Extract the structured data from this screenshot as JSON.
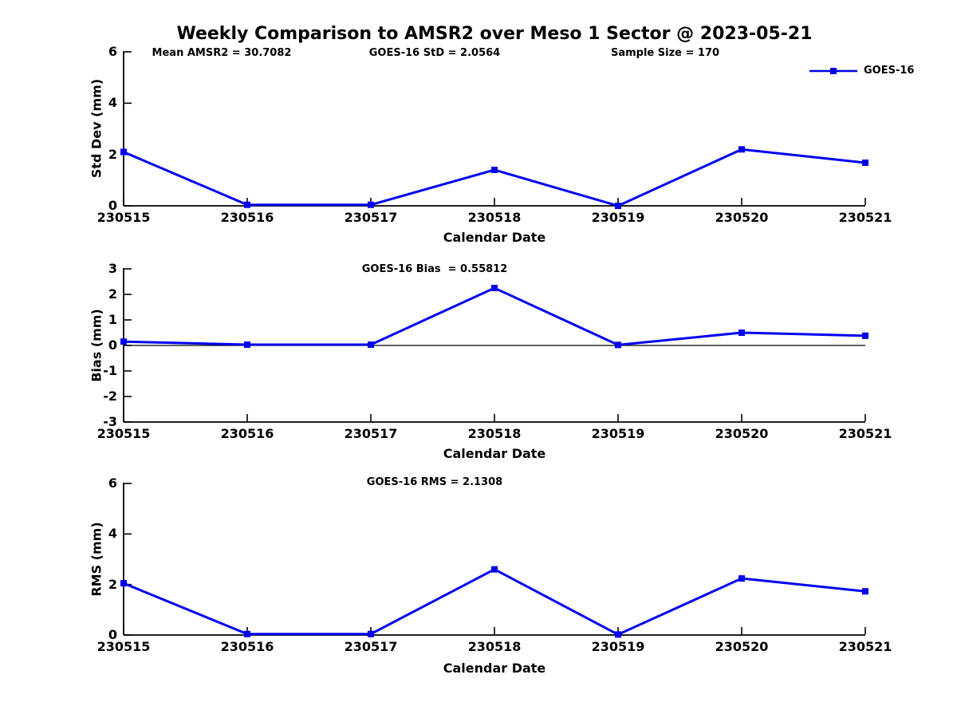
{
  "title": "Weekly Comparison to AMSR2 over Meso 1 Sector @ 2023-05-21",
  "colors": {
    "line": "#0000EE",
    "axis": "#000000",
    "background": "#FFFFFF",
    "text": "#000000"
  },
  "chart_data": [
    {
      "type": "line",
      "name": "std-dev",
      "annotations": [
        "Mean AMSR2 = 30.7082",
        "GOES-16 StD = 2.0564",
        "Sample Size = 170"
      ],
      "categories": [
        "230515",
        "230516",
        "230517",
        "230518",
        "230519",
        "230520",
        "230521"
      ],
      "series": [
        {
          "name": "GOES-16",
          "values": [
            2.1,
            0.04,
            0.04,
            1.4,
            0.0,
            2.2,
            1.68
          ]
        }
      ],
      "xlabel": "Calendar Date",
      "ylabel": "Std Dev (mm)",
      "ylim": [
        0,
        6
      ],
      "yticks": [
        0,
        2,
        4,
        6
      ],
      "grid": false,
      "marker": "square",
      "legend": {
        "label": "GOES-16",
        "position": "top-right"
      }
    },
    {
      "type": "line",
      "name": "bias",
      "annotations": [
        "GOES-16 Bias  = 0.55812"
      ],
      "categories": [
        "230515",
        "230516",
        "230517",
        "230518",
        "230519",
        "230520",
        "230521"
      ],
      "series": [
        {
          "name": "GOES-16",
          "values": [
            0.15,
            0.03,
            0.03,
            2.25,
            0.02,
            0.5,
            0.38
          ]
        }
      ],
      "xlabel": "Calendar Date",
      "ylabel": "Bias (mm)",
      "ylim": [
        -3,
        3
      ],
      "yticks": [
        -3,
        -2,
        -1,
        0,
        1,
        2,
        3
      ],
      "zero_line": true,
      "grid": false,
      "marker": "square"
    },
    {
      "type": "line",
      "name": "rms",
      "annotations": [
        "GOES-16 RMS = 2.1308"
      ],
      "categories": [
        "230515",
        "230516",
        "230517",
        "230518",
        "230519",
        "230520",
        "230521"
      ],
      "series": [
        {
          "name": "GOES-16",
          "values": [
            2.05,
            0.04,
            0.04,
            2.6,
            0.02,
            2.24,
            1.73
          ]
        }
      ],
      "xlabel": "Calendar Date",
      "ylabel": "RMS (mm)",
      "ylim": [
        0,
        6
      ],
      "yticks": [
        0,
        2,
        4,
        6
      ],
      "grid": false,
      "marker": "square"
    }
  ]
}
